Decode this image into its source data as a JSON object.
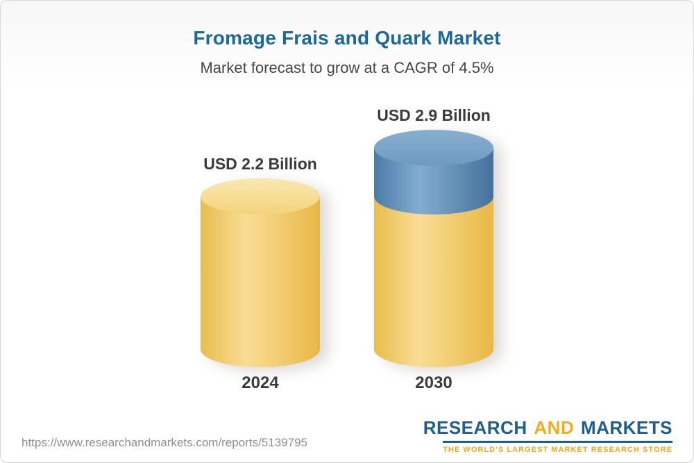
{
  "chart_data": {
    "type": "bar",
    "style": "3d-cylinder",
    "title": "Fromage Frais and Quark Market",
    "subtitle": "Market forecast to grow at a CAGR of 4.5%",
    "cagr_pct": 4.5,
    "unit": "USD Billion",
    "categories": [
      "2024",
      "2030"
    ],
    "totals": [
      2.2,
      2.9
    ],
    "bar_labels": [
      "USD 2.2 Billion",
      "USD 2.9 Billion"
    ],
    "series": [
      {
        "name": "base-market-value",
        "values": [
          2.2,
          2.2
        ],
        "body_colors": [
          "#e9bc4d",
          "#f9dd96",
          "#e8b845"
        ],
        "cap_colors": [
          "#fae7b2",
          "#f3d27a"
        ]
      },
      {
        "name": "forecast-growth-to-2030",
        "values": [
          0,
          0.7
        ],
        "body_colors": [
          "#4a7ba8",
          "#84adcf",
          "#44719c"
        ],
        "cap_colors": [
          "#87aed0",
          "#6e9ac1"
        ]
      }
    ],
    "ylim": [
      0,
      3.2
    ],
    "grid": false,
    "legend": "none"
  },
  "footer": {
    "url": "https://www.researchandmarkets.com/reports/5139795",
    "logo": {
      "word1": "RESEARCH",
      "word2": "AND",
      "word3": "MARKETS",
      "tagline": "THE WORLD'S LARGEST MARKET RESEARCH STORE"
    }
  },
  "colors": {
    "title_blue": "#19699f",
    "subtitle_gray": "#474747",
    "label_dark": "#3a3a3a",
    "url_gray": "#8f8f8f",
    "logo_blue": "#1d5e93",
    "logo_gold": "#f2ac1c"
  }
}
